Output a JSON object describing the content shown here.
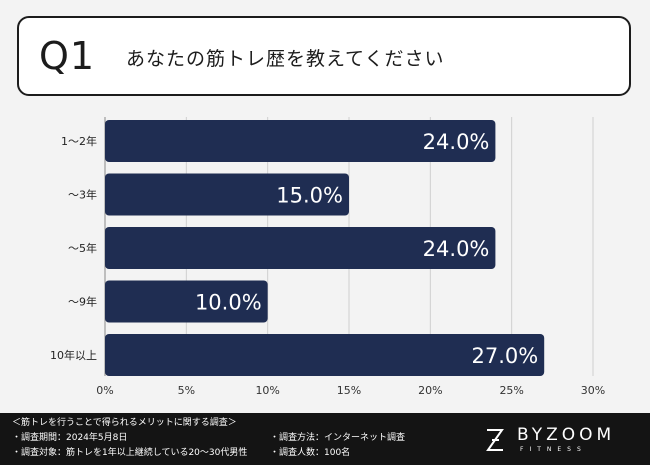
{
  "question": {
    "number": "Q1",
    "text": "あなたの筋トレ歴を教えてください"
  },
  "chart_data": {
    "type": "bar",
    "orientation": "horizontal",
    "categories": [
      "1〜2年",
      "〜3年",
      "〜5年",
      "〜9年",
      "10年以上"
    ],
    "values": [
      24.0,
      15.0,
      24.0,
      10.0,
      27.0
    ],
    "value_labels": [
      "24.0%",
      "15.0%",
      "24.0%",
      "10.0%",
      "27.0%"
    ],
    "xlim": [
      0,
      30
    ],
    "x_ticks": [
      "0%",
      "5%",
      "10%",
      "15%",
      "20%",
      "25%",
      "30%"
    ],
    "grid": true,
    "bar_color": "#1f2d52"
  },
  "footer": {
    "survey_title": "＜筋トレを行うことで得られるメリットに関する調査＞",
    "period": "・調査期間：2024年5月8日",
    "method": "・調査方法：インターネット調査",
    "target": "・調査対象：筋トレを1年以上継続している20〜30代男性",
    "sample": "・調査人数：100名",
    "brand": "BYZOOM",
    "brand_sub": "FITNESS"
  }
}
